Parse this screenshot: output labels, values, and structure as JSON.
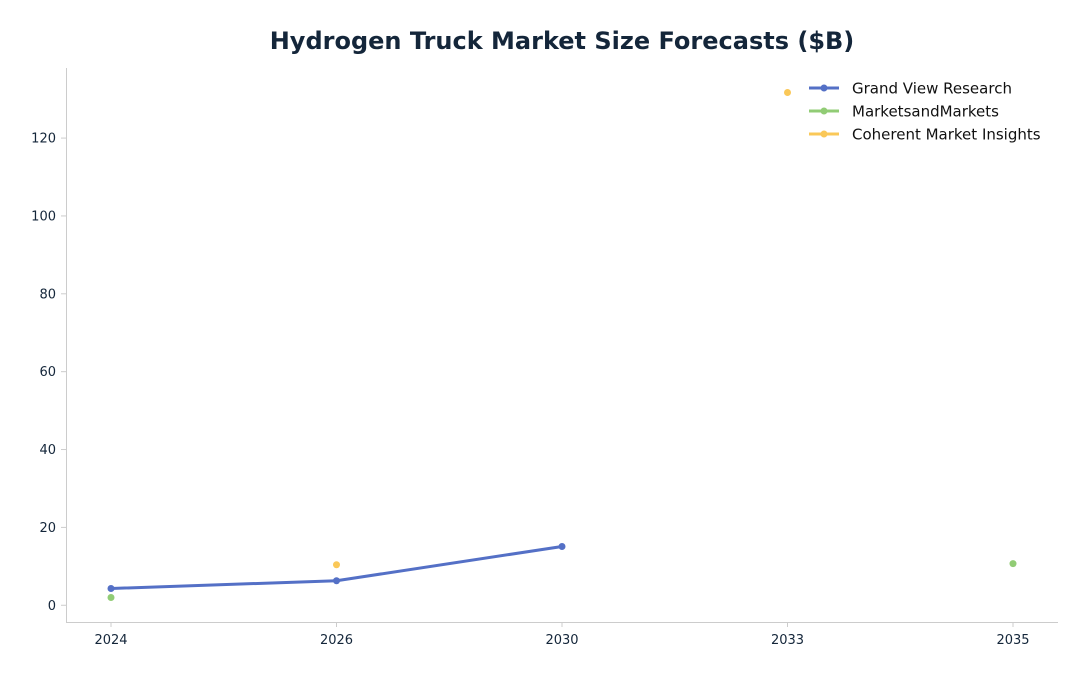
{
  "chart_data": {
    "type": "line",
    "title": "Hydrogen Truck Market Size Forecasts ($B)",
    "xlabel": "",
    "ylabel": "",
    "categories": [
      "2024",
      "2026",
      "2030",
      "2033",
      "2035"
    ],
    "ylim": [
      -4.3,
      138
    ],
    "yticks": [
      0,
      20,
      40,
      60,
      80,
      100,
      120
    ],
    "grid": false,
    "legend_position": "top-right",
    "series": [
      {
        "name": "Grand View Research",
        "color": "#5470c6",
        "values": [
          4.3,
          6.3,
          15.1,
          null,
          null
        ]
      },
      {
        "name": "MarketsandMarkets",
        "color": "#91cc75",
        "values": [
          2.0,
          null,
          null,
          null,
          10.7
        ]
      },
      {
        "name": "Coherent Market Insights",
        "color": "#fac858",
        "values": [
          null,
          10.4,
          null,
          131.7,
          null
        ]
      }
    ]
  }
}
